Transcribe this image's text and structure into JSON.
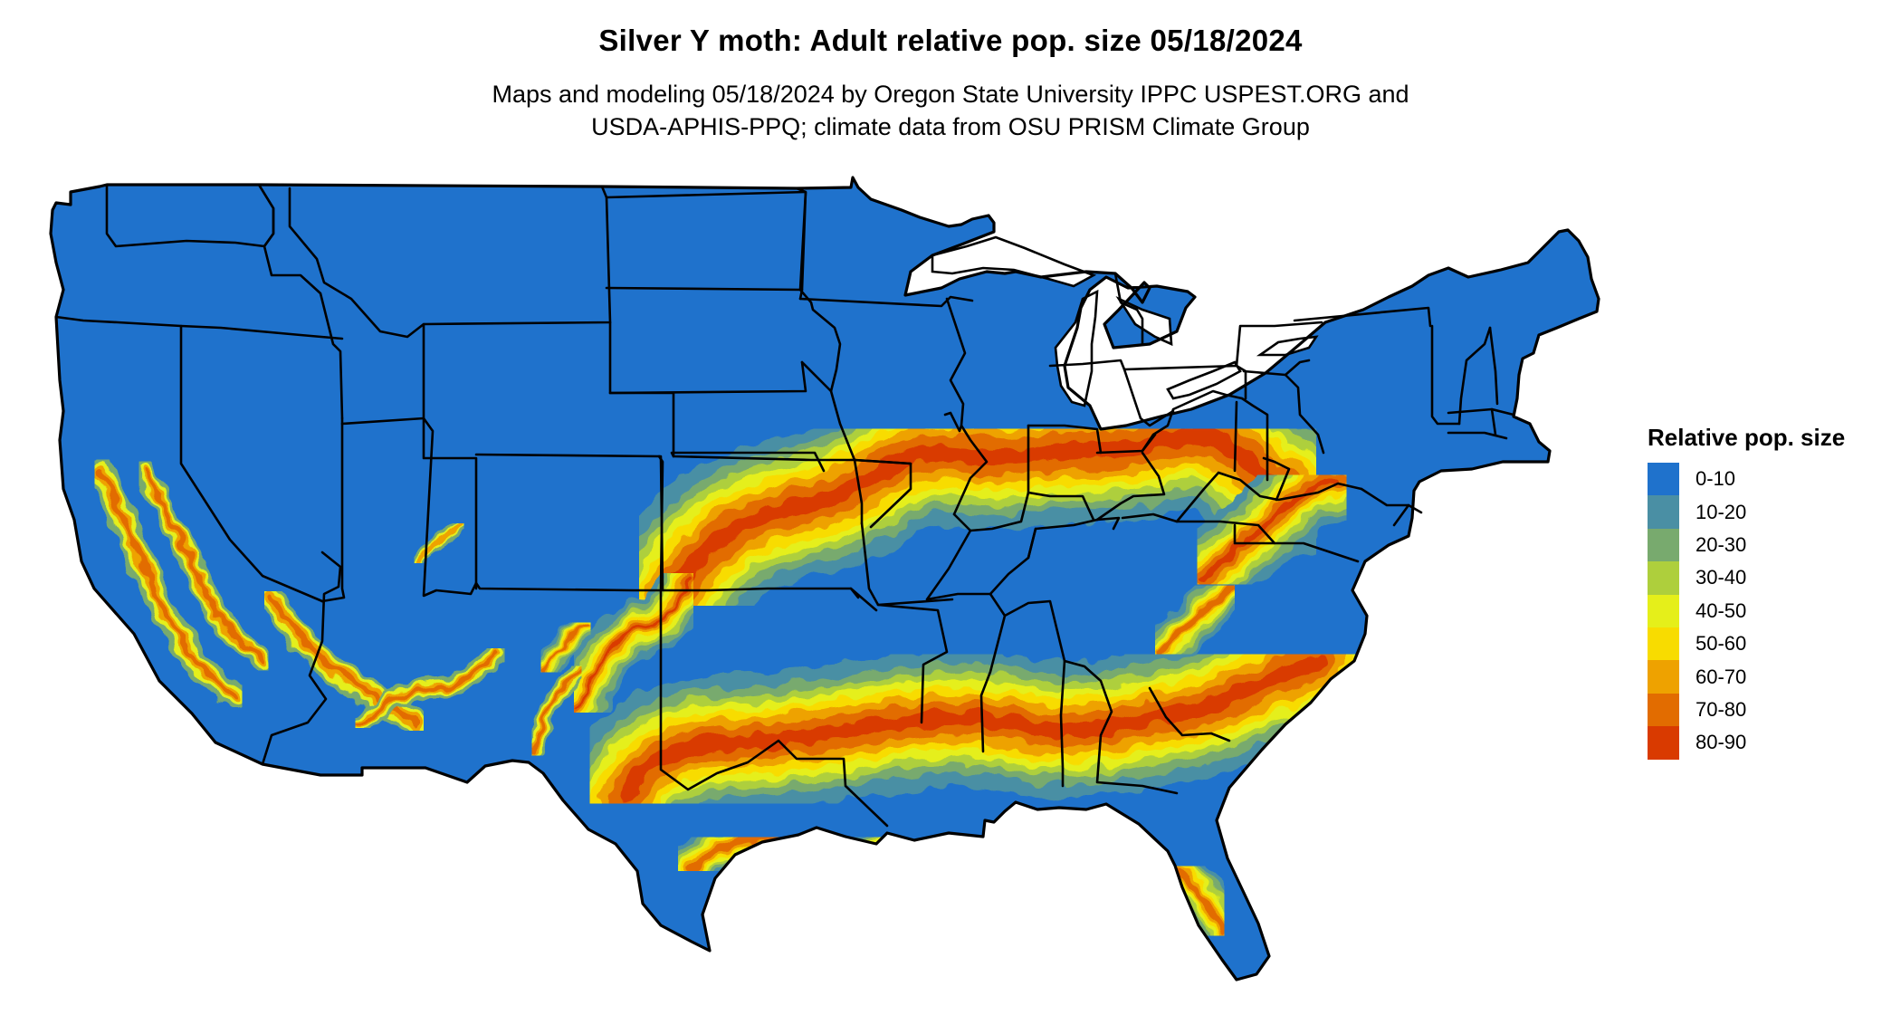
{
  "header": {
    "title": "Silver Y moth: Adult relative pop. size 05/18/2024",
    "subtitle_line1": "Maps and modeling 05/18/2024 by Oregon State University IPPC USPEST.ORG and",
    "subtitle_line2": "USDA-APHIS-PPQ; climate data from OSU PRISM Climate Group"
  },
  "legend": {
    "title": "Relative pop. size",
    "placement": "right",
    "items": [
      {
        "label": "0-10",
        "color": "#1f72cc"
      },
      {
        "label": "10-20",
        "color": "#4a8fa4"
      },
      {
        "label": "20-30",
        "color": "#78aa6e"
      },
      {
        "label": "30-40",
        "color": "#aecf3c"
      },
      {
        "label": "40-50",
        "color": "#e5ef1a"
      },
      {
        "label": "50-60",
        "color": "#f8dc00"
      },
      {
        "label": "60-70",
        "color": "#eea200"
      },
      {
        "label": "70-80",
        "color": "#e26c00"
      },
      {
        "label": "80-90",
        "color": "#d93a00"
      }
    ]
  },
  "map": {
    "region": "Contiguous United States",
    "base_color": "#1f72cc",
    "boundary_color": "#000000",
    "boundaries": "state"
  }
}
